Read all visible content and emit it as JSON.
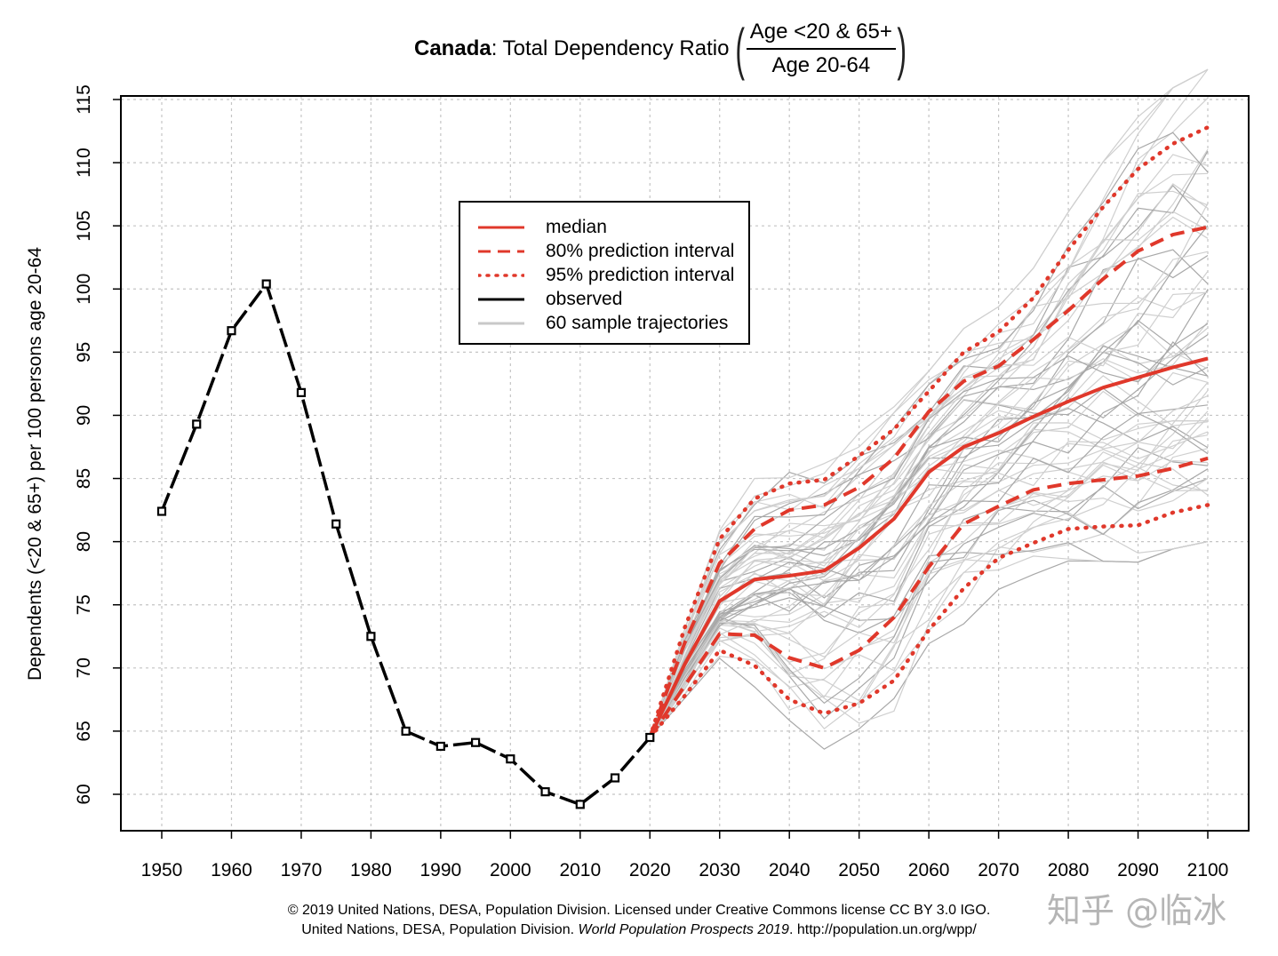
{
  "title": {
    "bold": "Canada",
    "rest": ": Total Dependency Ratio",
    "numerator": "Age <20 & 65+",
    "denominator": "Age 20-64"
  },
  "ylabel": "Dependents (<20 & 65+) per 100 persons age 20-64",
  "legend": [
    {
      "label": "median",
      "color": "#e0382b",
      "style": "solid"
    },
    {
      "label": "80% prediction interval",
      "color": "#e0382b",
      "style": "dashed"
    },
    {
      "label": "95% prediction interval",
      "color": "#e0382b",
      "style": "dotted"
    },
    {
      "label": "observed",
      "color": "#000000",
      "style": "solid"
    },
    {
      "label": "60 sample trajectories",
      "color": "#c8c8c8",
      "style": "solid"
    }
  ],
  "footer": {
    "line1": "© 2019 United Nations, DESA, Population Division. Licensed under Creative Commons license CC BY 3.0 IGO.",
    "line2_prefix": "United Nations, DESA, Population Division. ",
    "line2_italic": "World Population Prospects 2019",
    "line2_suffix": ". http://population.un.org/wpp/"
  },
  "watermark": "知乎 @临冰",
  "chart_data": {
    "type": "line",
    "xlim": [
      1950,
      2100
    ],
    "ylim": [
      57,
      115
    ],
    "x_ticks": [
      1950,
      1960,
      1970,
      1980,
      1990,
      2000,
      2010,
      2020,
      2030,
      2040,
      2050,
      2060,
      2070,
      2080,
      2090,
      2100
    ],
    "y_ticks": [
      60,
      65,
      70,
      75,
      80,
      85,
      90,
      95,
      100,
      105,
      110,
      115
    ],
    "grid": true,
    "series": [
      {
        "name": "observed",
        "x": [
          1950,
          1955,
          1960,
          1965,
          1970,
          1975,
          1980,
          1985,
          1990,
          1995,
          2000,
          2005,
          2010,
          2015,
          2020
        ],
        "values": [
          82.4,
          89.3,
          96.7,
          100.4,
          91.8,
          81.4,
          72.5,
          65.0,
          63.8,
          64.1,
          62.8,
          60.2,
          59.2,
          61.3,
          64.5
        ]
      },
      {
        "name": "median",
        "x": [
          2020,
          2025,
          2030,
          2035,
          2040,
          2045,
          2050,
          2055,
          2060,
          2065,
          2070,
          2075,
          2080,
          2085,
          2090,
          2095,
          2100
        ],
        "values": [
          64.5,
          70.3,
          75.3,
          77.0,
          77.3,
          77.7,
          79.5,
          81.8,
          85.5,
          87.5,
          88.6,
          89.9,
          91.1,
          92.2,
          93.0,
          93.8,
          94.5
        ]
      },
      {
        "name": "80% upper",
        "x": [
          2020,
          2025,
          2030,
          2035,
          2040,
          2045,
          2050,
          2055,
          2060,
          2065,
          2070,
          2075,
          2080,
          2085,
          2090,
          2095,
          2100
        ],
        "values": [
          64.5,
          72.0,
          78.3,
          81.0,
          82.5,
          82.9,
          84.3,
          86.6,
          90.3,
          92.7,
          93.9,
          96.0,
          98.3,
          100.8,
          103.0,
          104.3,
          104.9
        ]
      },
      {
        "name": "80% lower",
        "x": [
          2020,
          2025,
          2030,
          2035,
          2040,
          2045,
          2050,
          2055,
          2060,
          2065,
          2070,
          2075,
          2080,
          2085,
          2090,
          2095,
          2100
        ],
        "values": [
          64.5,
          68.6,
          72.7,
          72.6,
          70.8,
          70.0,
          71.4,
          74.0,
          78.0,
          81.4,
          82.8,
          84.1,
          84.6,
          84.9,
          85.2,
          85.8,
          86.6
        ]
      },
      {
        "name": "95% upper",
        "x": [
          2020,
          2025,
          2030,
          2035,
          2040,
          2045,
          2050,
          2055,
          2060,
          2065,
          2070,
          2075,
          2080,
          2085,
          2090,
          2095,
          2100
        ],
        "values": [
          64.5,
          73.2,
          80.2,
          83.4,
          84.6,
          84.9,
          86.8,
          88.9,
          91.9,
          95.0,
          96.6,
          99.3,
          103.1,
          106.5,
          109.5,
          111.5,
          112.8
        ]
      },
      {
        "name": "95% lower",
        "x": [
          2020,
          2025,
          2030,
          2035,
          2040,
          2045,
          2050,
          2055,
          2060,
          2065,
          2070,
          2075,
          2080,
          2085,
          2090,
          2095,
          2100
        ],
        "values": [
          64.5,
          67.8,
          71.4,
          70.2,
          67.5,
          66.4,
          67.2,
          69.0,
          73.0,
          76.3,
          78.7,
          79.9,
          81.0,
          81.2,
          81.3,
          82.3,
          82.9
        ]
      }
    ],
    "sample_trajectories_count": 60
  }
}
